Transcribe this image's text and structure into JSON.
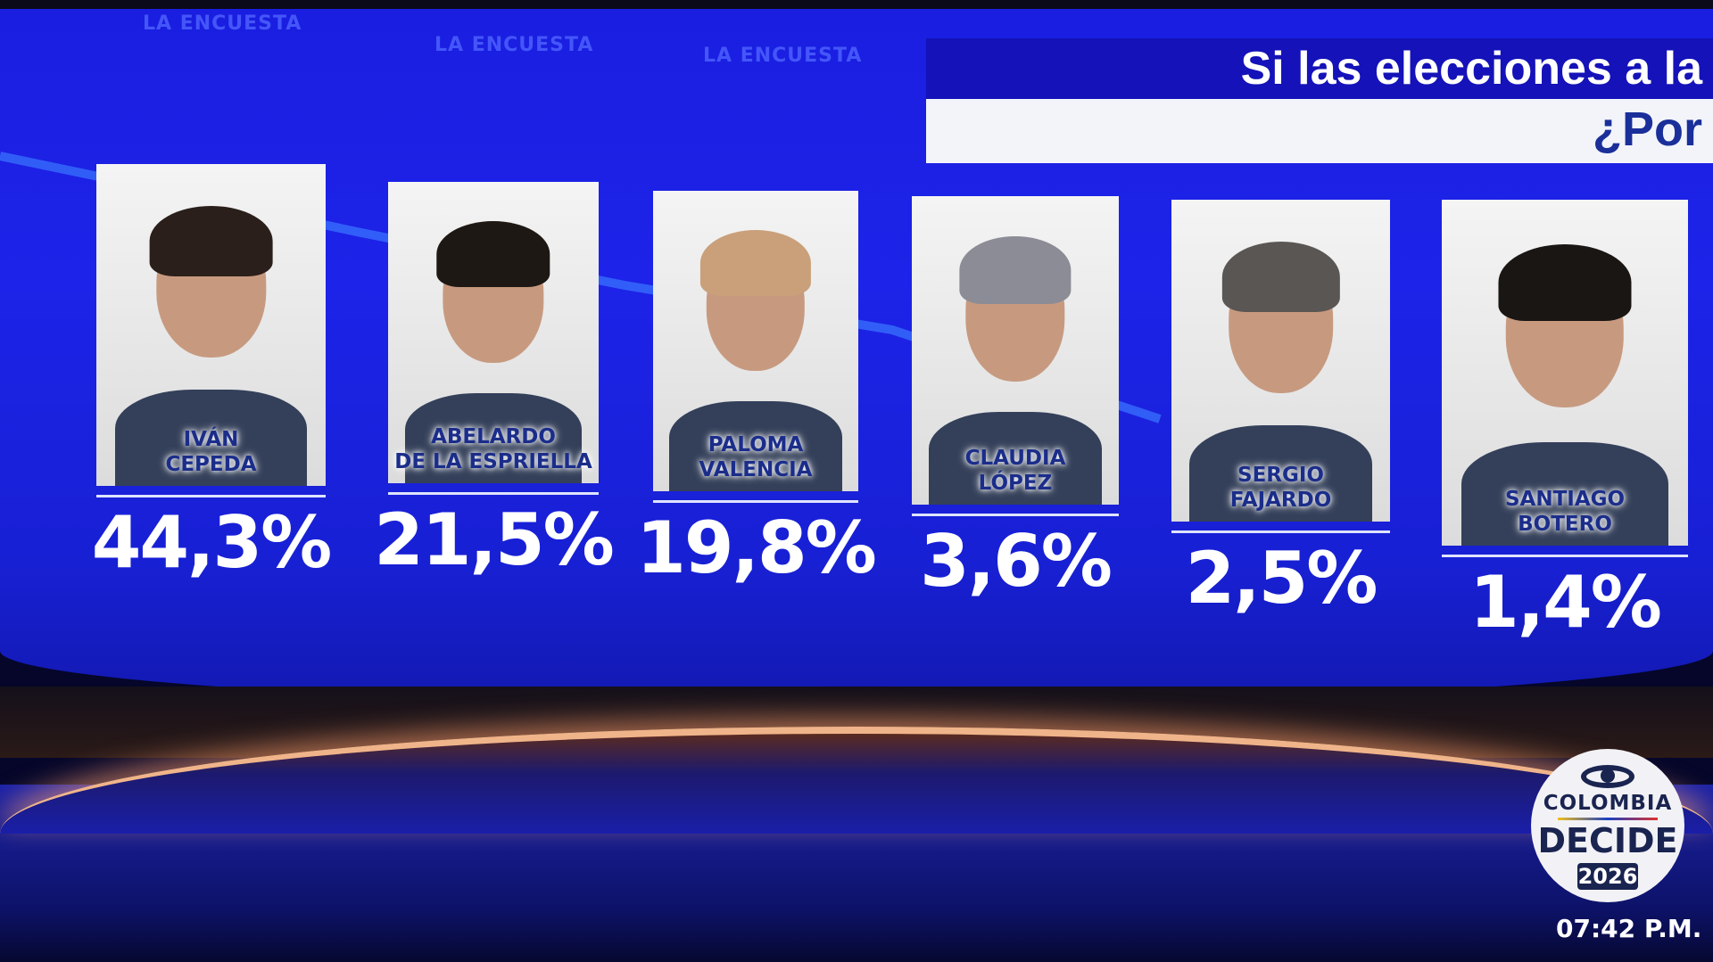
{
  "watermark": "LA ENCUESTA",
  "header": {
    "title": "Si las elecciones a la",
    "subtitle": "¿Por"
  },
  "candidates": [
    {
      "name": "IVÁN\nCEPEDA",
      "percent": "44,3%",
      "value": 44.3
    },
    {
      "name": "ABELARDO\nDE LA ESPRIELLA",
      "percent": "21,5%",
      "value": 21.5
    },
    {
      "name": "PALOMA\nVALENCIA",
      "percent": "19,8%",
      "value": 19.8
    },
    {
      "name": "CLAUDIA\nLÓPEZ",
      "percent": "3,6%",
      "value": 3.6
    },
    {
      "name": "SERGIO\nFAJARDO",
      "percent": "2,5%",
      "value": 2.5
    },
    {
      "name": "SANTIAGO\nBOTERO",
      "percent": "1,4%",
      "value": 1.4
    }
  ],
  "logo": {
    "line1": "COLOMBIA",
    "line2": "DECIDE",
    "year": "2026"
  },
  "clock": "07:42 P.M.",
  "colors": {
    "screen_blue": "#1d23e8",
    "header_navy": "#1412b8",
    "name_blue": "#1b2d8a"
  }
}
